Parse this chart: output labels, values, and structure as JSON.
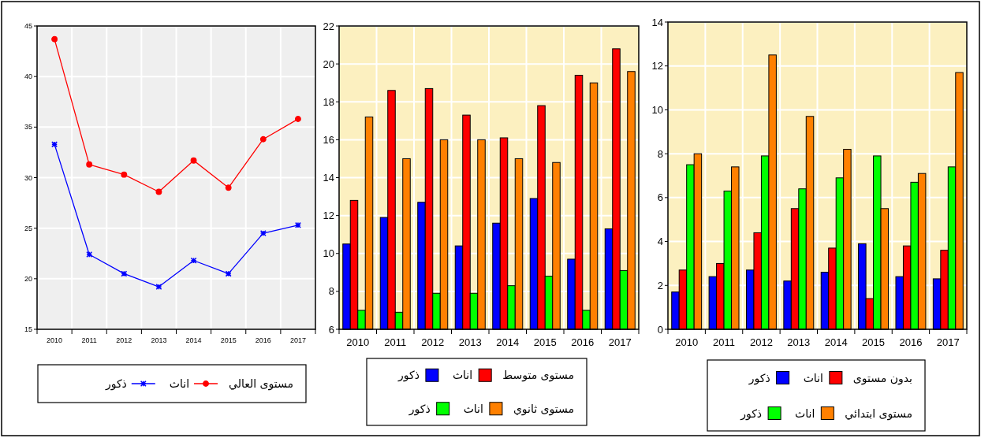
{
  "chart_data": [
    {
      "type": "line",
      "categories": [
        "2010",
        "2011",
        "2012",
        "2013",
        "2014",
        "2015",
        "2016",
        "2017"
      ],
      "ylim": [
        15,
        45
      ],
      "yticks": [
        15,
        20,
        25,
        30,
        35,
        40,
        45
      ],
      "grid": true,
      "legend": "bottom",
      "annotations": [
        "مستوى العالي"
      ],
      "series": [
        {
          "name": "ذكور",
          "color": "#0000ff",
          "marker": "cross",
          "values": [
            33.3,
            22.4,
            20.5,
            19.2,
            21.8,
            20.5,
            24.5,
            25.3
          ]
        },
        {
          "name": "اناث",
          "color": "#ff0000",
          "marker": "circle",
          "values": [
            43.7,
            31.3,
            30.3,
            28.6,
            31.7,
            29.0,
            33.8,
            35.8
          ]
        }
      ]
    },
    {
      "type": "bar",
      "categories": [
        "2010",
        "2011",
        "2012",
        "2013",
        "2014",
        "2015",
        "2016",
        "2017"
      ],
      "ylim": [
        6,
        22
      ],
      "yticks": [
        6,
        8,
        10,
        12,
        14,
        16,
        18,
        20,
        22
      ],
      "grid": true,
      "legend": "bottom",
      "annotations": [
        "مستوى متوسط",
        "مستوى ثانوي"
      ],
      "series": [
        {
          "name": "ذكور",
          "color": "#0000ff",
          "values": [
            10.5,
            11.9,
            12.7,
            10.4,
            11.6,
            12.9,
            9.7,
            11.3
          ]
        },
        {
          "name": "اناث",
          "color": "#ff0000",
          "values": [
            12.8,
            18.6,
            18.7,
            17.3,
            16.1,
            17.8,
            19.4,
            20.8
          ]
        },
        {
          "name": "ذكور",
          "color": "#00ff00",
          "values": [
            7.0,
            6.9,
            7.9,
            7.9,
            8.3,
            8.8,
            7.0,
            9.1
          ]
        },
        {
          "name": "اناث",
          "color": "#ff8000",
          "values": [
            17.2,
            15.0,
            16.0,
            16.0,
            15.0,
            14.8,
            19.0,
            19.6
          ]
        }
      ]
    },
    {
      "type": "bar",
      "categories": [
        "2010",
        "2011",
        "2012",
        "2013",
        "2014",
        "2015",
        "2016",
        "2017"
      ],
      "ylim": [
        0,
        14
      ],
      "yticks": [
        0,
        2,
        4,
        6,
        8,
        10,
        12,
        14
      ],
      "grid": true,
      "legend": "bottom",
      "annotations": [
        "بدون مستوى",
        "مستوى ابتدائي"
      ],
      "series": [
        {
          "name": "ذكور",
          "color": "#0000ff",
          "values": [
            1.7,
            2.4,
            2.7,
            2.2,
            2.6,
            3.9,
            2.4,
            2.3
          ]
        },
        {
          "name": "اناث",
          "color": "#ff0000",
          "values": [
            2.7,
            3.0,
            4.4,
            5.5,
            3.7,
            1.4,
            3.8,
            3.6
          ]
        },
        {
          "name": "ذكور",
          "color": "#00ff00",
          "values": [
            7.5,
            6.3,
            7.9,
            6.4,
            6.9,
            7.9,
            6.7,
            7.4
          ]
        },
        {
          "name": "اناث",
          "color": "#ff8000",
          "values": [
            8.0,
            7.4,
            12.5,
            9.7,
            8.2,
            5.5,
            7.1,
            11.7
          ]
        }
      ]
    }
  ]
}
